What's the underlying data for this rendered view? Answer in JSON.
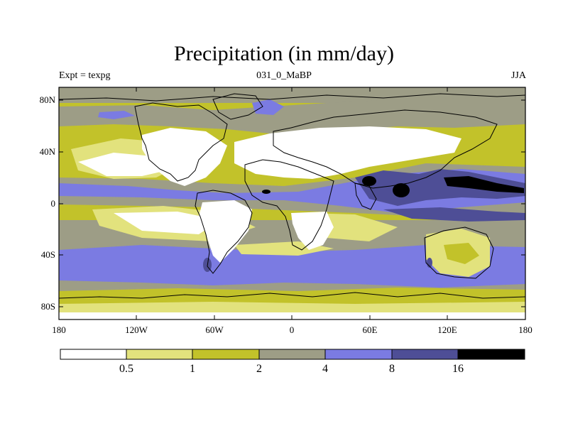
{
  "title": "Precipitation (in mm/day)",
  "left_label": "Expt = texpg",
  "center_label": "031_0_MaBP",
  "right_label": "JJA",
  "lat_ticks": [
    "80N",
    "40N",
    "0",
    "40S",
    "80S"
  ],
  "lon_ticks": [
    "180",
    "120W",
    "60W",
    "0",
    "60E",
    "120E",
    "180"
  ],
  "colorbar": {
    "labels": [
      "0.5",
      "1",
      "2",
      "4",
      "8",
      "16"
    ],
    "colors": [
      "#ffffff",
      "#e2e27d",
      "#c2c22a",
      "#9d9d86",
      "#7b7be2",
      "#4e4e96",
      "#000000"
    ]
  },
  "colors": {
    "white": "#ffffff",
    "light_yellow": "#e2e27d",
    "olive": "#c2c22a",
    "gray": "#9d9d86",
    "blue": "#7b7be2",
    "dark_blue": "#4e4e96",
    "black": "#000000"
  }
}
